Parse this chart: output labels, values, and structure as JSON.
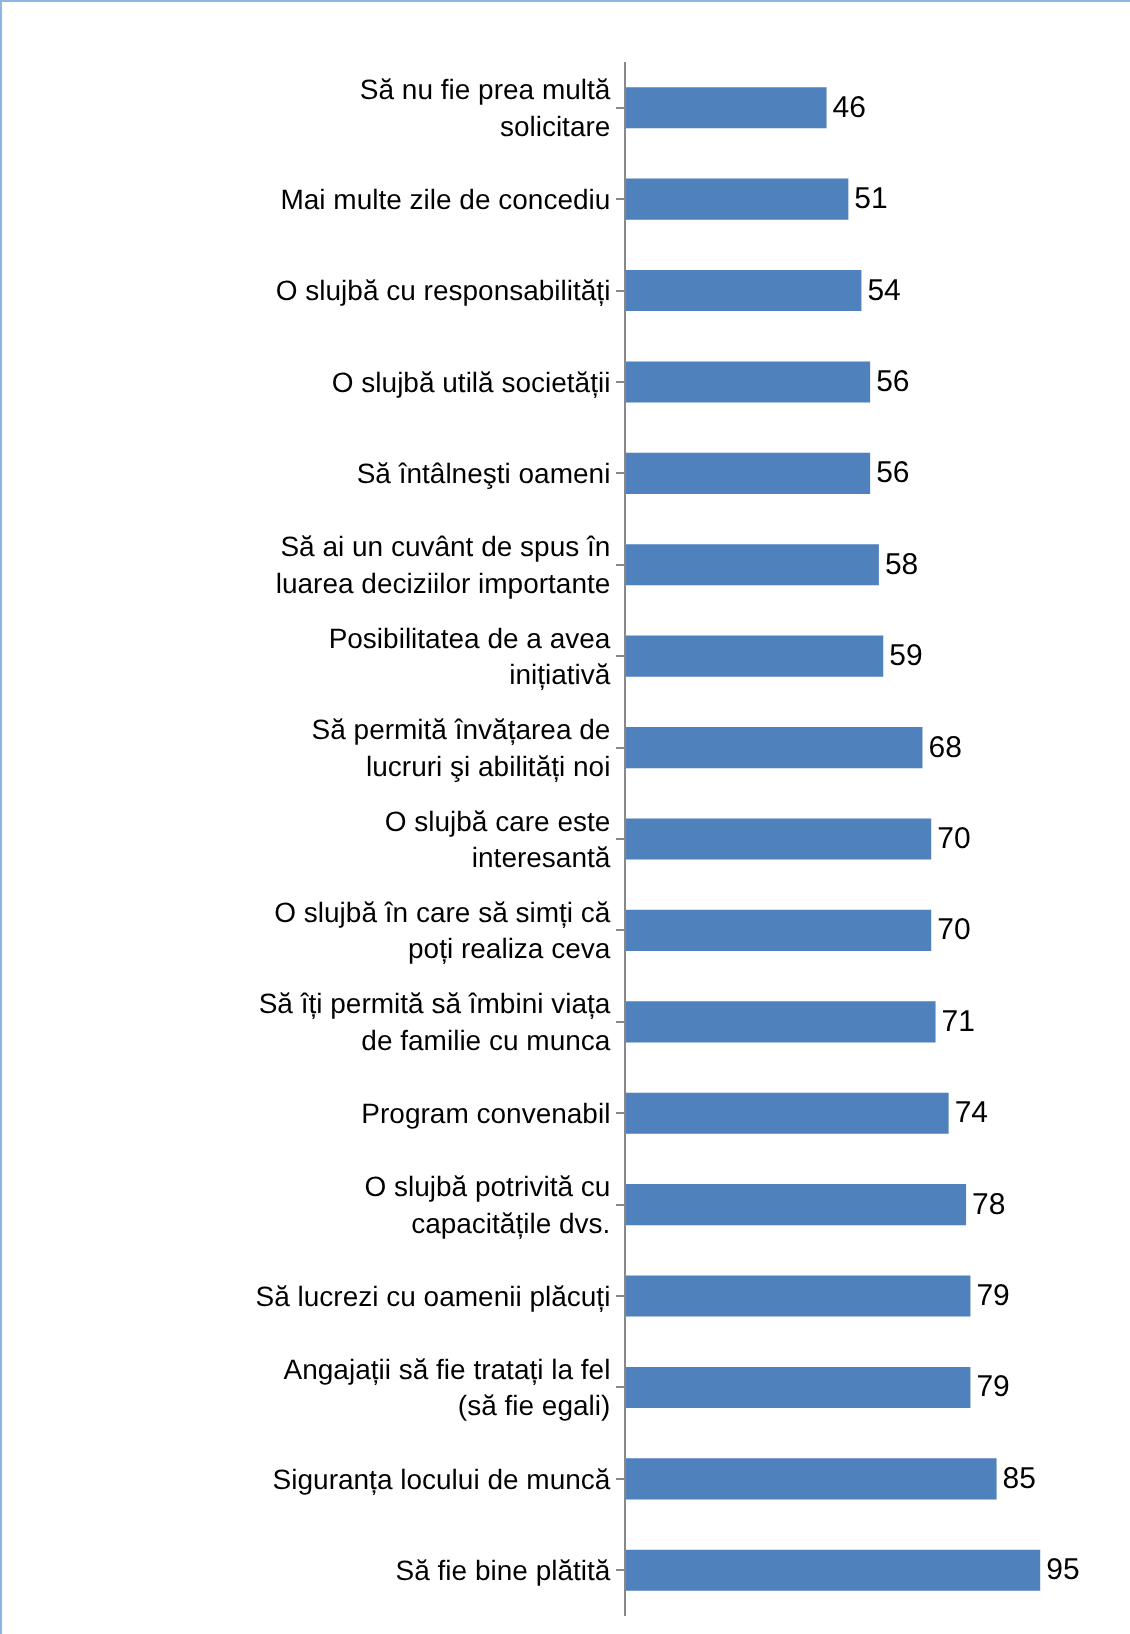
{
  "chart_data": {
    "type": "bar",
    "orientation": "horizontal",
    "data_labels": true,
    "color": "#4f81bd",
    "categories": [
      "Să nu fie prea multă\nsolicitare",
      "Mai multe zile de concediu",
      "O slujbă cu responsabilități",
      "O slujbă utilă societății",
      "Să întâlneşti oameni",
      "Să ai un cuvânt de spus în\nluarea deciziilor importante",
      "Posibilitatea de a avea\ninițiativă",
      "Să permită învățarea de\nlucruri şi abilități noi",
      "O slujbă care este\ninteresantă",
      "O slujbă în care să simți că\npoți realiza ceva",
      "Să îți permită să îmbini viața\nde familie cu munca",
      "Program convenabil",
      "O slujbă potrivită cu\ncapacitățile dvs.",
      "Să lucrezi cu oamenii plăcuți",
      "Angajații să fie tratați la fel\n(să fie egali)",
      "Siguranța locului de muncă",
      "Să fie bine plătită"
    ],
    "values": [
      46,
      51,
      54,
      56,
      56,
      58,
      59,
      68,
      70,
      70,
      71,
      74,
      78,
      79,
      79,
      85,
      95
    ]
  }
}
